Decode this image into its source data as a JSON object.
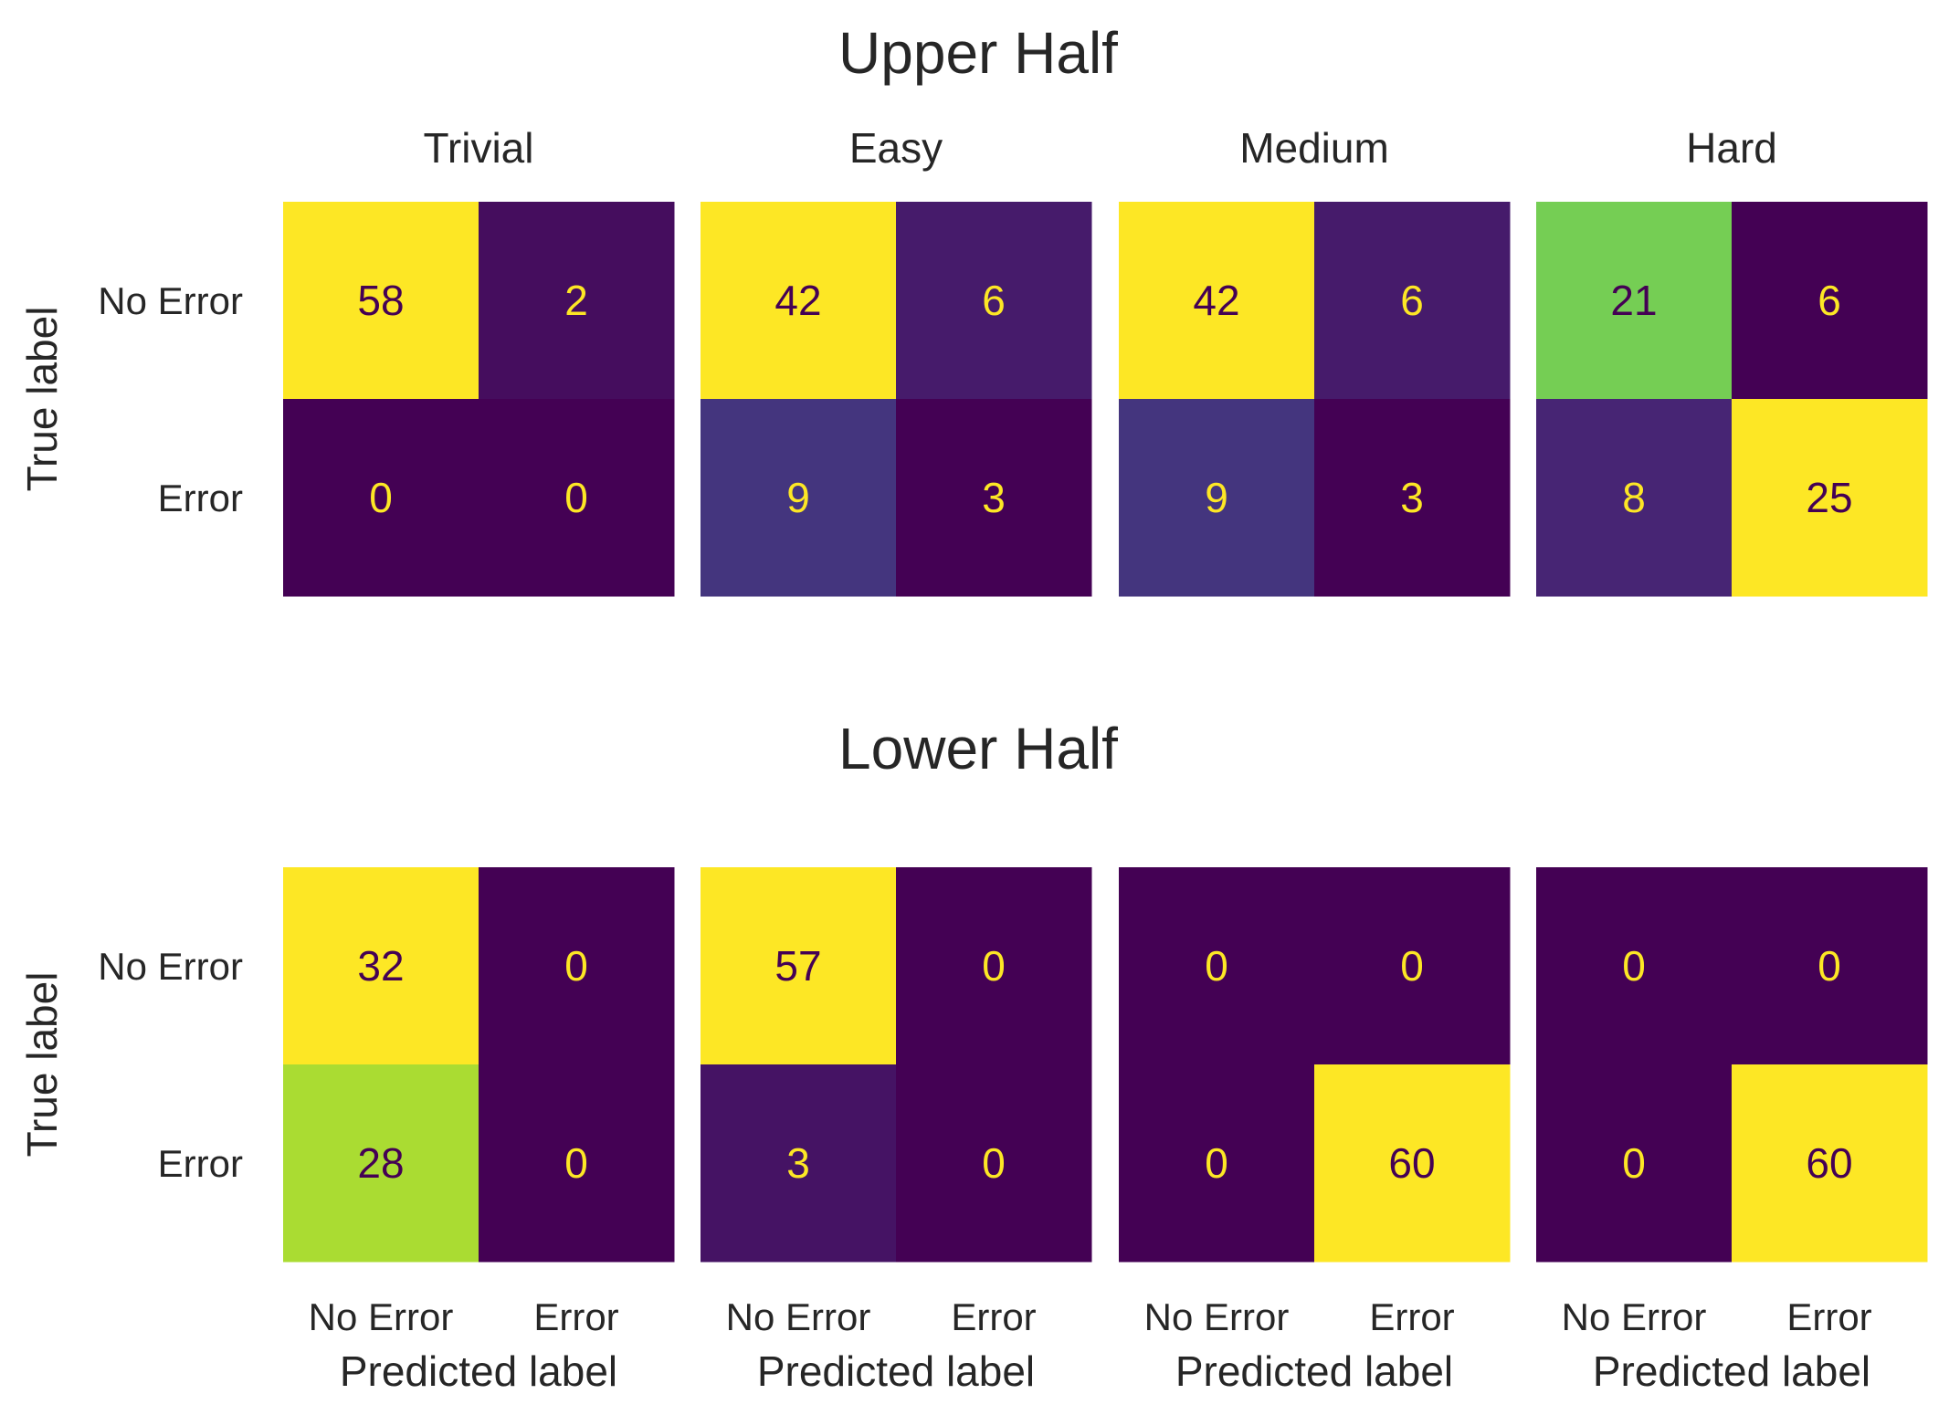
{
  "chart_data": {
    "type": "heatmap",
    "colormap": "viridis",
    "class_labels": [
      "No Error",
      "Error"
    ],
    "x_axis_label": "Predicted label",
    "y_axis_label": "True label",
    "colors": {
      "background": "#ffffff",
      "text": "#262626",
      "low": "#440154",
      "high": "#fde725"
    },
    "groups": [
      {
        "title": "Upper Half",
        "matrices": [
          {
            "title": "Trivial",
            "values": [
              [
                58,
                2
              ],
              [
                0,
                0
              ]
            ]
          },
          {
            "title": "Easy",
            "values": [
              [
                42,
                6
              ],
              [
                9,
                3
              ]
            ]
          },
          {
            "title": "Medium",
            "values": [
              [
                42,
                6
              ],
              [
                9,
                3
              ]
            ]
          },
          {
            "title": "Hard",
            "values": [
              [
                21,
                6
              ],
              [
                8,
                25
              ]
            ]
          }
        ]
      },
      {
        "title": "Lower Half",
        "matrices": [
          {
            "title": "",
            "values": [
              [
                32,
                0
              ],
              [
                28,
                0
              ]
            ]
          },
          {
            "title": "",
            "values": [
              [
                57,
                0
              ],
              [
                3,
                0
              ]
            ]
          },
          {
            "title": "",
            "values": [
              [
                0,
                0
              ],
              [
                0,
                60
              ]
            ]
          },
          {
            "title": "",
            "values": [
              [
                0,
                0
              ],
              [
                0,
                60
              ]
            ]
          }
        ]
      }
    ]
  }
}
